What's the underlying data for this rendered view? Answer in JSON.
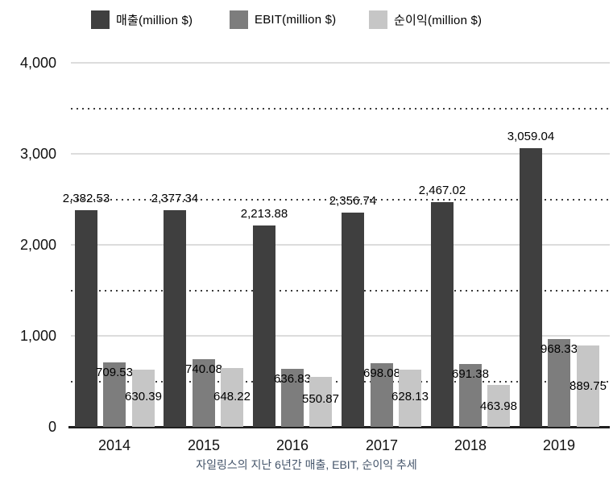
{
  "chart_data": {
    "type": "bar",
    "categories": [
      "2014",
      "2015",
      "2016",
      "2017",
      "2018",
      "2019"
    ],
    "series": [
      {
        "name": "매출(million $)",
        "color": "#3f3f3f",
        "values": [
          2382.53,
          2377.34,
          2213.88,
          2356.74,
          2467.02,
          3059.04
        ]
      },
      {
        "name": "EBIT(million $)",
        "color": "#7d7d7d",
        "values": [
          709.53,
          740.08,
          636.83,
          698.08,
          691.38,
          968.33
        ]
      },
      {
        "name": "순이익(million $)",
        "color": "#c6c6c6",
        "values": [
          630.39,
          648.22,
          550.87,
          628.13,
          463.98,
          889.75
        ]
      }
    ],
    "value_labels": [
      "2,382.53",
      "2,377.34",
      "2,213.88",
      "2,356.74",
      "2,467.02",
      "3,059.04",
      "709.53",
      "740.08",
      "636.83",
      "698.08",
      "691.38",
      "968.33",
      "630.39",
      "648.22",
      "550.87",
      "628.13",
      "463.98",
      "889.75"
    ],
    "title": "",
    "caption": "자일링스의 지난 6년간 매출, EBIT, 순이익 추세",
    "xlabel": "",
    "ylabel": "",
    "ylim": [
      0,
      4000
    ],
    "yticks": [
      0,
      1000,
      2000,
      3000,
      4000
    ],
    "ytick_labels": [
      "0",
      "1,000",
      "2,000",
      "3,000",
      "4,000"
    ],
    "minor_gridlines": [
      500,
      1500,
      2500,
      3500
    ],
    "grid": "horizontal: solid major, dotted minor",
    "legend_position": "top",
    "colors": {
      "major_gridline": "#dcdcdc",
      "minor_gridline": "#3c3c3c",
      "axis_baseline": "#1f1f1f",
      "caption_text": "#44546a"
    }
  }
}
